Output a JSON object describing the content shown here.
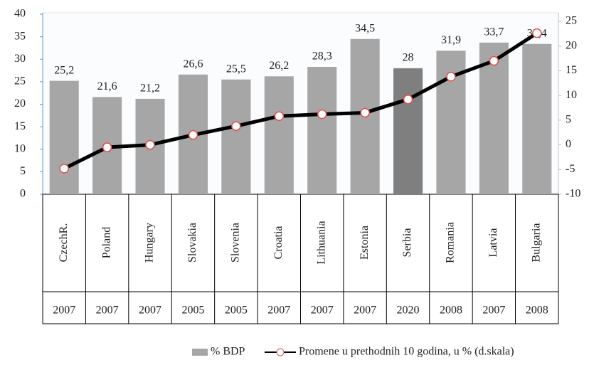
{
  "chart_data": {
    "type": "bar_line",
    "categories": [
      "CzechR.",
      "Poland",
      "Hungary",
      "Slovakia",
      "Slovenia",
      "Croatia",
      "Lithuania",
      "Estonia",
      "Serbia",
      "Romania",
      "Latvia",
      "Bulgaria"
    ],
    "category_years": [
      "2007",
      "2007",
      "2007",
      "2005",
      "2005",
      "2007",
      "2007",
      "2007",
      "2020",
      "2008",
      "2007",
      "2008"
    ],
    "series": [
      {
        "name": "% BDP",
        "type": "bar",
        "color": "#a6a6a6",
        "colors": [
          "#a6a6a6",
          "#a6a6a6",
          "#a6a6a6",
          "#a6a6a6",
          "#a6a6a6",
          "#a6a6a6",
          "#a6a6a6",
          "#a6a6a6",
          "#7f7f7f",
          "#a6a6a6",
          "#a6a6a6",
          "#a6a6a6"
        ],
        "values": [
          25.2,
          21.6,
          21.2,
          26.6,
          25.5,
          26.2,
          28.3,
          34.5,
          28,
          31.9,
          33.7,
          33.4
        ],
        "value_labels": [
          "25,2",
          "21,6",
          "21,2",
          "26,6",
          "25,5",
          "26,2",
          "28,3",
          "34,5",
          "28",
          "31,9",
          "33,7",
          "33,4"
        ]
      },
      {
        "name": "Promene u prethodnih 10 godina, u % (d.skala)",
        "type": "line",
        "axis": "y2",
        "color": "#000000",
        "marker_color": "#e05050",
        "values": [
          -4.8,
          -0.5,
          0,
          2,
          3.8,
          5.8,
          6.2,
          6.5,
          9.2,
          13.8,
          17,
          22.6
        ]
      }
    ],
    "ylim": [
      0,
      40
    ],
    "yticks": [
      0,
      5,
      10,
      15,
      20,
      25,
      30,
      35,
      40
    ],
    "y2lim": [
      -10,
      25
    ],
    "y2ticks": [
      -10,
      -5,
      0,
      5,
      10,
      15,
      20,
      25
    ],
    "legend": "bottom"
  }
}
